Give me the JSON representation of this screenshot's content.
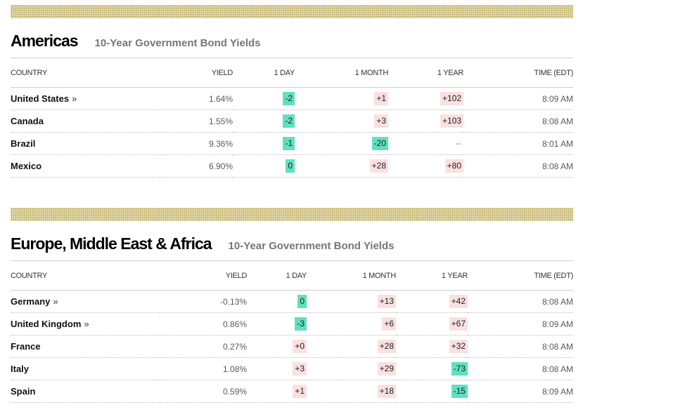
{
  "sections": [
    {
      "title": "Americas",
      "subtitle": "10-Year Government Bond Yields",
      "headers": {
        "country": "COUNTRY",
        "yield": "YIELD",
        "day": "1 DAY",
        "month": "1 MONTH",
        "year": "1 YEAR",
        "time": "TIME (EDT)"
      },
      "rows": [
        {
          "country": "United States",
          "link": "»",
          "yield": "1.64%",
          "day": "-2",
          "month": "+1",
          "year": "+102",
          "time": "8:09 AM"
        },
        {
          "country": "Canada",
          "link": "",
          "yield": "1.55%",
          "day": "-2",
          "month": "+3",
          "year": "+103",
          "time": "8:08 AM"
        },
        {
          "country": "Brazil",
          "link": "",
          "yield": "9.36%",
          "day": "-1",
          "month": "-20",
          "year": "--",
          "time": "8:01 AM"
        },
        {
          "country": "Mexico",
          "link": "",
          "yield": "6.90%",
          "day": "0",
          "month": "+28",
          "year": "+80",
          "time": "8:08 AM"
        }
      ]
    },
    {
      "title": "Europe, Middle East & Africa",
      "subtitle": "10-Year Government Bond Yields",
      "headers": {
        "country": "COUNTRY",
        "yield": "YIELD",
        "day": "1 DAY",
        "month": "1 MONTH",
        "year": "1 YEAR",
        "time": "TIME (EDT)"
      },
      "rows": [
        {
          "country": "Germany",
          "link": "»",
          "yield": "-0.13%",
          "day": "0",
          "month": "+13",
          "year": "+42",
          "time": "8:08 AM"
        },
        {
          "country": "United Kingdom",
          "link": "»",
          "yield": "0.86%",
          "day": "-3",
          "month": "+6",
          "year": "+67",
          "time": "8:09 AM"
        },
        {
          "country": "France",
          "link": "",
          "yield": "0.27%",
          "day": "+0",
          "month": "+28",
          "year": "+32",
          "time": "8:08 AM"
        },
        {
          "country": "Italy",
          "link": "",
          "yield": "1.08%",
          "day": "+3",
          "month": "+29",
          "year": "-73",
          "time": "8:08 AM"
        },
        {
          "country": "Spain",
          "link": "",
          "yield": "0.59%",
          "day": "+1",
          "month": "+18",
          "year": "-15",
          "time": "8:09 AM"
        }
      ]
    }
  ],
  "colors": {
    "negative": "#5fe1c0",
    "positive": "#fbe0e0",
    "band": "#e6dcb0"
  }
}
